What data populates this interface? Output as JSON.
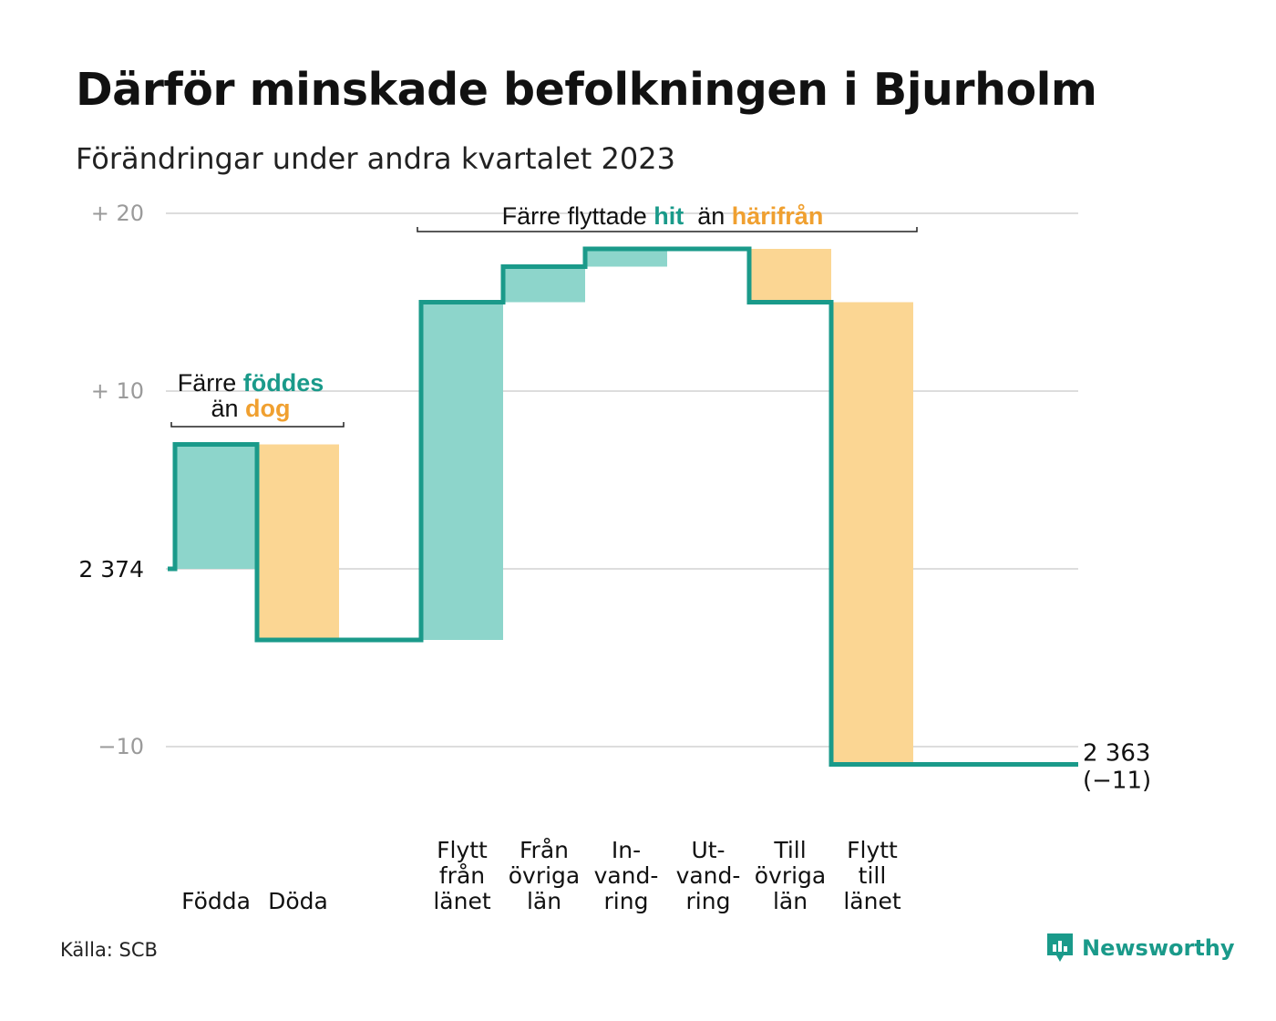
{
  "header": {
    "title": "Därför minskade befolkningen i Bjurholm",
    "subtitle": "Förändringar under andra kvartalet 2023"
  },
  "chart_data": {
    "type": "waterfall",
    "start": {
      "label": "2  374",
      "value": 0
    },
    "end": {
      "label": "2 363",
      "change_label": "(−11)",
      "value": -11
    },
    "ylim": [
      -13,
      21
    ],
    "yticks": [
      {
        "value": 20,
        "label": "+  20"
      },
      {
        "value": 10,
        "label": "+  10"
      },
      {
        "value": 0,
        "label": ""
      },
      {
        "value": -10,
        "label": "−10"
      }
    ],
    "steps": [
      {
        "category": [
          "Födda"
        ],
        "change": 7,
        "kind": "in"
      },
      {
        "category": [
          "Döda"
        ],
        "change": -11,
        "kind": "out"
      },
      {
        "category": [],
        "change": 0,
        "kind": "none"
      },
      {
        "category": [
          "Flytt",
          "från",
          "länet"
        ],
        "change": 19,
        "kind": "in"
      },
      {
        "category": [
          "Från",
          "övriga",
          "län"
        ],
        "change": 2,
        "kind": "in"
      },
      {
        "category": [
          "In-",
          "vand-",
          "ring"
        ],
        "change": 1,
        "kind": "in"
      },
      {
        "category": [
          "Ut-",
          "vand-",
          "ring"
        ],
        "change": 0,
        "kind": "out"
      },
      {
        "category": [
          "Till",
          "övriga",
          "län"
        ],
        "change": -3,
        "kind": "out"
      },
      {
        "category": [
          "Flytt",
          "till",
          "länet"
        ],
        "change": -26,
        "kind": "out"
      }
    ],
    "annotations": [
      {
        "id": "births",
        "parts": [
          {
            "text": "Färre ",
            "style": "plain"
          },
          {
            "text": "föddes",
            "style": "in"
          },
          {
            "text": "än ",
            "style": "plain",
            "newline": true
          },
          {
            "text": "dog",
            "style": "out"
          }
        ]
      },
      {
        "id": "migration",
        "parts": [
          {
            "text": "Färre flyttade ",
            "style": "plain"
          },
          {
            "text": "hit",
            "style": "in"
          },
          {
            "text": "  än ",
            "style": "plain"
          },
          {
            "text": "härifrån",
            "style": "out"
          }
        ]
      }
    ],
    "colors": {
      "in_fill": "#8dd5cb",
      "out_fill": "#fbd693",
      "line": "#1a9a8a",
      "in_text": "#1a9a8a",
      "out_text": "#f0a030",
      "grid": "#dddddd",
      "tick_text": "#9a9a9a"
    },
    "grid": true
  },
  "footer": {
    "source": "Källa: SCB",
    "brand": "Newsworthy",
    "brand_icon": "newsworthy-chart-icon"
  }
}
